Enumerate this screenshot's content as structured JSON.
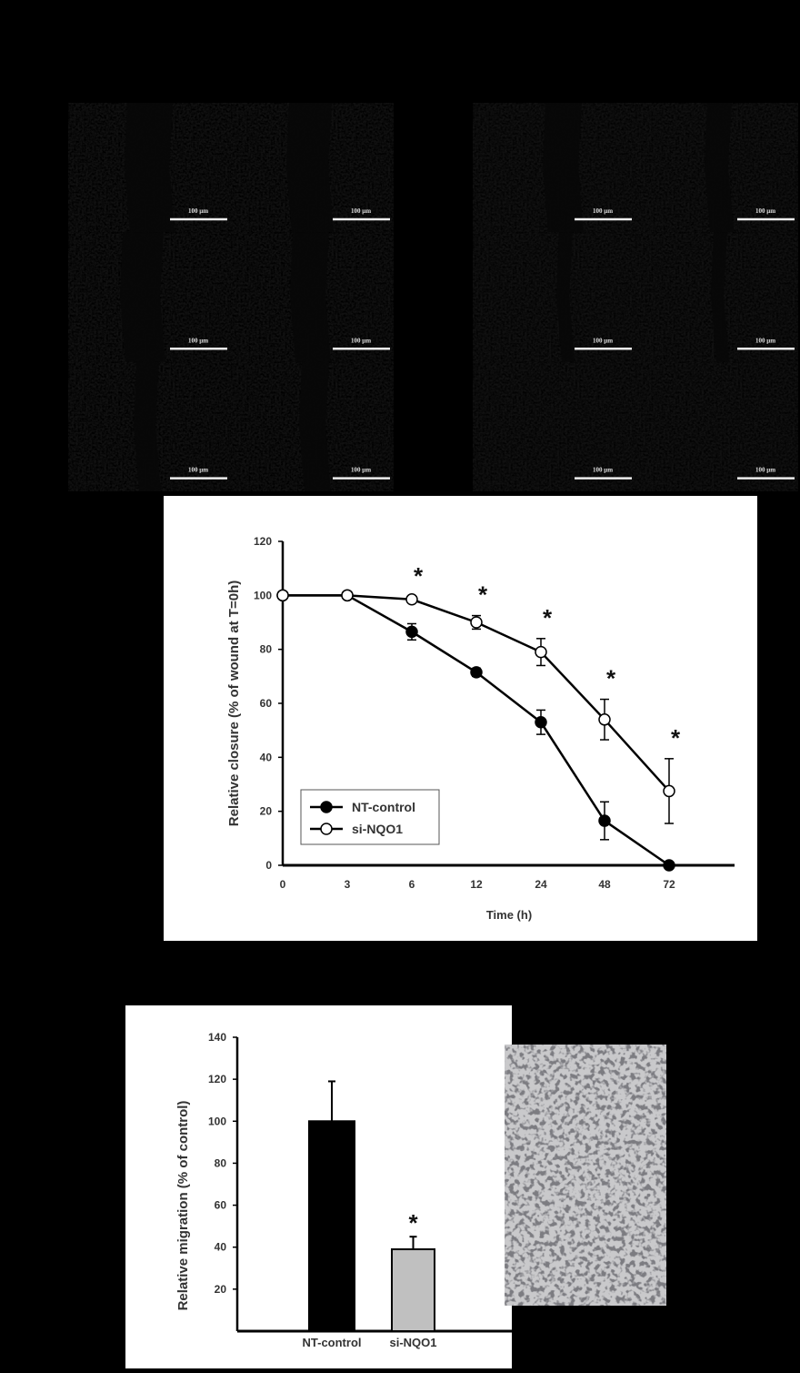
{
  "micrographs": {
    "scale_bar_label": "100 µm",
    "panels": [
      {
        "rows": 3,
        "cols": 2,
        "style": "fluorescence"
      },
      {
        "rows": 3,
        "cols": 2,
        "style": "fluorescence"
      }
    ]
  },
  "chart_data": [
    {
      "type": "line",
      "title": "",
      "xlabel": "Time (h)",
      "ylabel": "Relative closure (% of wound at T=0h)",
      "x": [
        "0",
        "3",
        "6",
        "12",
        "24",
        "48",
        "72"
      ],
      "ylim": [
        0,
        120
      ],
      "yticks": [
        0,
        20,
        40,
        60,
        80,
        100,
        120
      ],
      "legend_position": "bottom-left",
      "series": [
        {
          "name": "NT-control",
          "marker": "filled-circle",
          "values": [
            100,
            100,
            86.5,
            71.5,
            53,
            16.5,
            0
          ],
          "errors": [
            0,
            0,
            3,
            1.5,
            4.5,
            7,
            0
          ]
        },
        {
          "name": "si-NQO1",
          "marker": "open-circle",
          "values": [
            100,
            100,
            98.5,
            90,
            79,
            54,
            27.5
          ],
          "errors": [
            0,
            0,
            1,
            2.5,
            5,
            7.5,
            12
          ]
        }
      ],
      "annotations": [
        {
          "x": "6",
          "text": "*"
        },
        {
          "x": "12",
          "text": "*"
        },
        {
          "x": "24",
          "text": "*"
        },
        {
          "x": "48",
          "text": "*"
        },
        {
          "x": "72",
          "text": "*"
        }
      ]
    },
    {
      "type": "bar",
      "title": "",
      "xlabel": "",
      "ylabel": "Relative migration (% of control)",
      "categories": [
        "NT-control",
        "si-NQO1"
      ],
      "values": [
        100,
        39
      ],
      "errors": [
        19,
        6
      ],
      "colors": [
        "#000000",
        "#c0c0c0"
      ],
      "ylim": [
        0,
        140
      ],
      "yticks": [
        20,
        40,
        60,
        80,
        100,
        120,
        140
      ],
      "annotations": [
        {
          "category": "si-NQO1",
          "text": "*"
        }
      ]
    }
  ],
  "transwell_image": {
    "style": "stained-cells"
  }
}
